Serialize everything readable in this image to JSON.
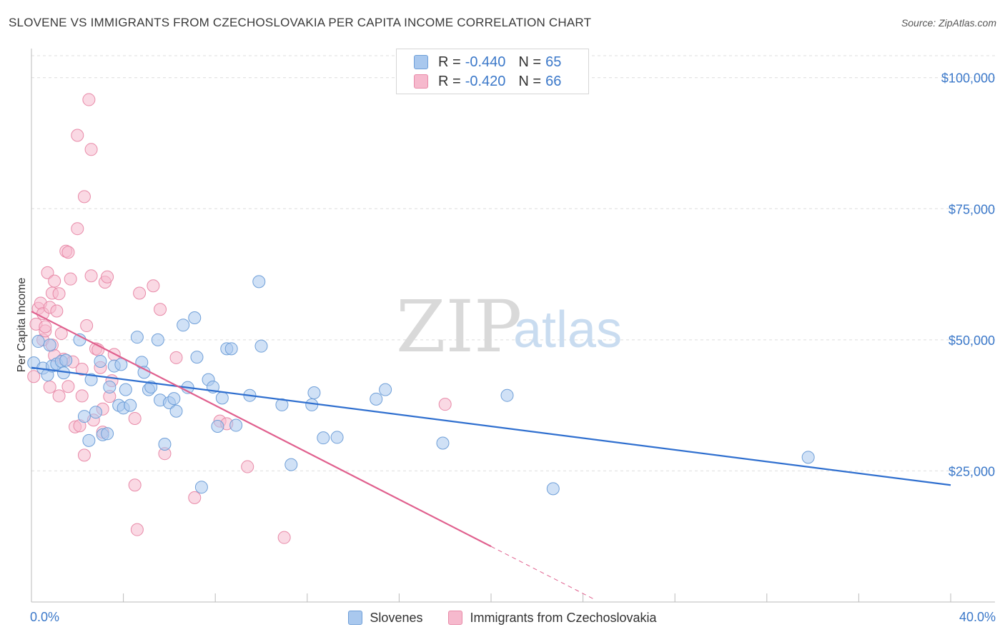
{
  "header": {
    "title": "SLOVENE VS IMMIGRANTS FROM CZECHOSLOVAKIA PER CAPITA INCOME CORRELATION CHART",
    "source": "Source: ZipAtlas.com"
  },
  "watermark": {
    "part1": "ZIP",
    "part2": "atlas"
  },
  "legend": {
    "rows": [
      {
        "r_label": "R = ",
        "r_value": "-0.440",
        "n_label": "N = ",
        "n_value": "65"
      },
      {
        "r_label": "R = ",
        "r_value": "-0.420",
        "n_label": "N = ",
        "n_value": "66"
      }
    ]
  },
  "bottom_legend": {
    "series1": "Slovenes",
    "series2": "Immigrants from Czechoslovakia"
  },
  "colors": {
    "blue_fill": "#a9c8ee",
    "blue_stroke": "#6f9fd8",
    "blue_line": "#2f6fcf",
    "pink_fill": "#f6b9cd",
    "pink_stroke": "#e88aa8",
    "pink_line": "#e0608e",
    "axis_text": "#3b78c9",
    "grid": "#dddddd"
  },
  "chart_data": {
    "type": "scatter",
    "title": "SLOVENE VS IMMIGRANTS FROM CZECHOSLOVAKIA PER CAPITA INCOME CORRELATION CHART",
    "xlabel": "",
    "ylabel": "Per Capita Income",
    "xlim": [
      0,
      40
    ],
    "ylim": [
      0,
      105000
    ],
    "x_tick_labels": [
      "0.0%",
      "40.0%"
    ],
    "y_ticks": [
      25000,
      50000,
      75000,
      100000
    ],
    "y_tick_labels": [
      "$25,000",
      "$50,000",
      "$75,000",
      "$100,000"
    ],
    "grid": true,
    "legend_placement": "top-center",
    "series": [
      {
        "name": "Slovenes",
        "r": -0.44,
        "n": 65,
        "trend": {
          "x": [
            0,
            40
          ],
          "y": [
            44700,
            22300
          ]
        },
        "points": [
          [
            0.1,
            45600
          ],
          [
            0.3,
            49700
          ],
          [
            0.5,
            44600
          ],
          [
            0.7,
            43300
          ],
          [
            0.8,
            49000
          ],
          [
            0.9,
            45000
          ],
          [
            1.1,
            45400
          ],
          [
            1.3,
            45900
          ],
          [
            1.4,
            43700
          ],
          [
            1.5,
            46100
          ],
          [
            2.1,
            50000
          ],
          [
            2.3,
            35400
          ],
          [
            2.5,
            30800
          ],
          [
            2.6,
            42400
          ],
          [
            2.8,
            36200
          ],
          [
            3.0,
            45900
          ],
          [
            3.1,
            31900
          ],
          [
            3.3,
            32100
          ],
          [
            3.4,
            41000
          ],
          [
            3.6,
            45000
          ],
          [
            3.8,
            37500
          ],
          [
            3.9,
            45300
          ],
          [
            4.0,
            37000
          ],
          [
            4.1,
            40500
          ],
          [
            4.3,
            37500
          ],
          [
            4.6,
            50500
          ],
          [
            4.8,
            45700
          ],
          [
            4.9,
            43800
          ],
          [
            5.1,
            40500
          ],
          [
            5.2,
            41000
          ],
          [
            5.5,
            50000
          ],
          [
            5.6,
            38500
          ],
          [
            5.8,
            30100
          ],
          [
            6.0,
            38000
          ],
          [
            6.2,
            38800
          ],
          [
            6.3,
            36400
          ],
          [
            6.6,
            52800
          ],
          [
            6.8,
            40900
          ],
          [
            7.1,
            54200
          ],
          [
            7.2,
            46700
          ],
          [
            7.4,
            21900
          ],
          [
            7.7,
            42400
          ],
          [
            7.9,
            41000
          ],
          [
            8.1,
            33500
          ],
          [
            8.3,
            38900
          ],
          [
            8.5,
            48300
          ],
          [
            8.7,
            48300
          ],
          [
            8.9,
            33700
          ],
          [
            9.5,
            39400
          ],
          [
            9.9,
            61100
          ],
          [
            10.0,
            48800
          ],
          [
            10.9,
            37600
          ],
          [
            11.3,
            26200
          ],
          [
            12.2,
            37600
          ],
          [
            12.3,
            39900
          ],
          [
            12.7,
            31300
          ],
          [
            13.3,
            31400
          ],
          [
            15.0,
            38700
          ],
          [
            15.4,
            40500
          ],
          [
            17.9,
            30300
          ],
          [
            20.7,
            39400
          ],
          [
            22.7,
            21600
          ],
          [
            33.8,
            27600
          ]
        ]
      },
      {
        "name": "Immigrants from Czechoslovakia",
        "r": -0.42,
        "n": 66,
        "trend": {
          "x": [
            0,
            20
          ],
          "y": [
            55400,
            10600
          ]
        },
        "trend_dashed": {
          "x": [
            20,
            24.5
          ],
          "y": [
            10600,
            500
          ]
        },
        "points": [
          [
            0.1,
            43000
          ],
          [
            0.2,
            53000
          ],
          [
            0.3,
            56000
          ],
          [
            0.4,
            57000
          ],
          [
            0.5,
            50000
          ],
          [
            0.5,
            55000
          ],
          [
            0.6,
            51700
          ],
          [
            0.6,
            52500
          ],
          [
            0.7,
            62800
          ],
          [
            0.8,
            56200
          ],
          [
            0.8,
            41000
          ],
          [
            0.9,
            58900
          ],
          [
            0.9,
            49000
          ],
          [
            1.0,
            61200
          ],
          [
            1.0,
            47000
          ],
          [
            1.1,
            55500
          ],
          [
            1.2,
            58800
          ],
          [
            1.2,
            39300
          ],
          [
            1.3,
            51200
          ],
          [
            1.4,
            46300
          ],
          [
            1.5,
            66900
          ],
          [
            1.6,
            66700
          ],
          [
            1.6,
            41100
          ],
          [
            1.7,
            61600
          ],
          [
            1.8,
            45800
          ],
          [
            1.9,
            33400
          ],
          [
            2.0,
            89000
          ],
          [
            2.0,
            71200
          ],
          [
            2.1,
            33600
          ],
          [
            2.2,
            44400
          ],
          [
            2.2,
            39300
          ],
          [
            2.3,
            28000
          ],
          [
            2.3,
            77300
          ],
          [
            2.4,
            52700
          ],
          [
            2.5,
            95800
          ],
          [
            2.6,
            86300
          ],
          [
            2.6,
            62200
          ],
          [
            2.7,
            34700
          ],
          [
            2.8,
            48300
          ],
          [
            2.9,
            48100
          ],
          [
            3.0,
            44700
          ],
          [
            3.1,
            36800
          ],
          [
            3.1,
            32400
          ],
          [
            3.2,
            61000
          ],
          [
            3.3,
            62000
          ],
          [
            3.4,
            39200
          ],
          [
            3.5,
            42200
          ],
          [
            3.6,
            47200
          ],
          [
            4.5,
            35000
          ],
          [
            4.5,
            22300
          ],
          [
            4.6,
            13800
          ],
          [
            4.7,
            58900
          ],
          [
            5.3,
            60300
          ],
          [
            5.6,
            55800
          ],
          [
            5.8,
            28300
          ],
          [
            6.3,
            46600
          ],
          [
            7.1,
            19900
          ],
          [
            8.2,
            34500
          ],
          [
            8.5,
            34000
          ],
          [
            9.4,
            25800
          ],
          [
            11.0,
            12300
          ],
          [
            18.0,
            37700
          ]
        ]
      }
    ]
  }
}
